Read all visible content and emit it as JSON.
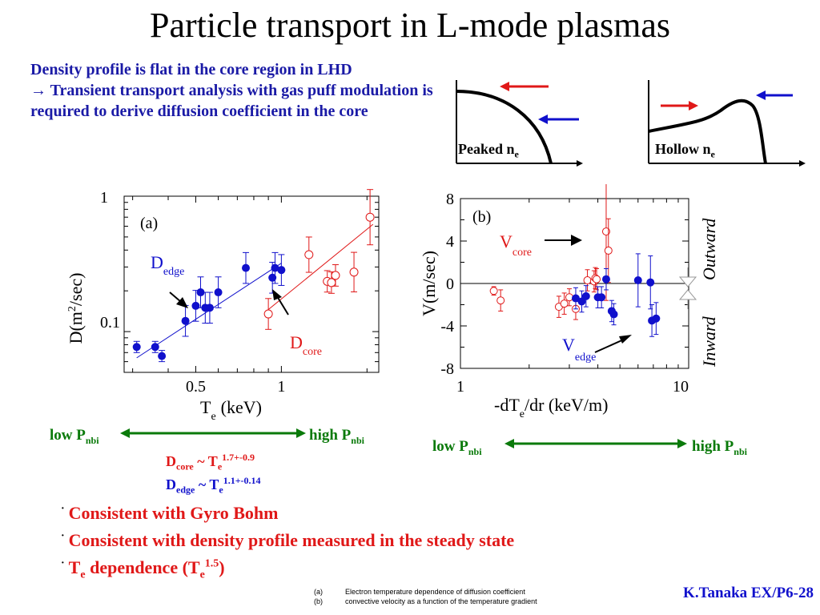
{
  "title": "Particle transport in L-mode plasmas",
  "intro": {
    "line1": "Density profile is flat in the core region in LHD",
    "arrow": "→",
    "line2": "Transient transport analysis with gas puff modulation is required to derive diffusion coefficient in the core"
  },
  "profiles": {
    "peaked": {
      "label": "Peaked n",
      "sub": "e"
    },
    "hollow": {
      "label": "Hollow n",
      "sub": "e"
    }
  },
  "colors": {
    "blue": "#1010cc",
    "red": "#e01818",
    "green": "#0a7a0a",
    "intro": "#1a1aa6"
  },
  "chart_data": [
    {
      "type": "scatter",
      "panel_label": "(a)",
      "xlabel": "T",
      "xlabel_sub": "e",
      "xlabel_unit": "(keV)",
      "ylabel": "D(m",
      "ylabel_sup": "2",
      "ylabel_unit": "/sec)",
      "x_scale": "log",
      "y_scale": "log",
      "xlim": [
        0.28,
        2.2
      ],
      "ylim": [
        0.05,
        1
      ],
      "x_ticks": [
        "0.5",
        "1"
      ],
      "y_ticks": [
        "1",
        "0.1"
      ],
      "series": [
        {
          "name": "D",
          "name_sub": "edge",
          "color": "#1010cc",
          "marker": "filled",
          "x": [
            0.31,
            0.36,
            0.38,
            0.46,
            0.5,
            0.52,
            0.54,
            0.56,
            0.6,
            0.75,
            0.93,
            0.95,
            1.0
          ],
          "y": [
            0.077,
            0.077,
            0.066,
            0.12,
            0.155,
            0.195,
            0.15,
            0.15,
            0.195,
            0.295,
            0.25,
            0.295,
            0.285
          ],
          "err": [
            0.1,
            0.1,
            0.1,
            0.3,
            0.3,
            0.3,
            0.3,
            0.3,
            0.3,
            0.3,
            0.3,
            0.3,
            0.3
          ]
        },
        {
          "name": "D",
          "name_sub": "core",
          "color": "#e01818",
          "marker": "open",
          "x": [
            0.9,
            1.25,
            1.45,
            1.5,
            1.55,
            1.8,
            2.05
          ],
          "y": [
            0.135,
            0.37,
            0.235,
            0.23,
            0.26,
            0.275,
            0.7
          ],
          "err": [
            0.3,
            0.35,
            0.2,
            0.2,
            0.2,
            0.4,
            0.6
          ]
        }
      ],
      "fit_lines": [
        {
          "color": "#1010cc",
          "x": [
            0.31,
            1.0
          ],
          "y": [
            0.064,
            0.32
          ]
        },
        {
          "color": "#e01818",
          "x": [
            0.88,
            2.1
          ],
          "y": [
            0.14,
            0.62
          ]
        }
      ]
    },
    {
      "type": "scatter",
      "panel_label": "(b)",
      "xlabel": "-dT",
      "xlabel_sub": "e",
      "xlabel_unit": "/dr (keV/m)",
      "ylabel": "V(m/sec)",
      "x_scale": "log",
      "y_scale": "linear",
      "xlim": [
        1,
        10
      ],
      "ylim": [
        -8,
        8
      ],
      "x_ticks": [
        "1",
        "10"
      ],
      "y_ticks": [
        "8",
        "4",
        "0",
        "-4",
        "-8"
      ],
      "series": [
        {
          "name": "V",
          "name_sub": "edge",
          "color": "#1010cc",
          "marker": "filled",
          "x": [
            3.2,
            3.4,
            3.55,
            4.0,
            4.15,
            4.35,
            4.6,
            4.7,
            6.0,
            6.8,
            6.9,
            7.2
          ],
          "y": [
            -1.4,
            -1.7,
            -1.2,
            -1.3,
            -1.3,
            0.4,
            -2.6,
            -2.9,
            0.3,
            0.1,
            -3.5,
            -3.3
          ],
          "err": [
            1.0,
            1.0,
            1.0,
            1.0,
            1.0,
            1.0,
            1.0,
            1.0,
            2.5,
            2.5,
            1.5,
            1.5
          ]
        },
        {
          "name": "V",
          "name_sub": "core",
          "color": "#e01818",
          "marker": "open",
          "x": [
            1.4,
            1.5,
            2.7,
            2.85,
            3.0,
            3.2,
            3.6,
            3.85,
            3.9,
            3.95,
            4.35,
            4.45
          ],
          "y": [
            -0.7,
            -1.6,
            -2.2,
            -1.9,
            -1.3,
            -2.4,
            0.3,
            0.2,
            0.5,
            0.4,
            4.9,
            3.1
          ],
          "err": [
            0.4,
            1.0,
            1.0,
            1.0,
            0.8,
            1.0,
            1.0,
            1.0,
            1.0,
            1.0,
            6.5,
            3.0
          ]
        }
      ],
      "side_labels": {
        "outward": "Outward",
        "inward": "Inward"
      }
    }
  ],
  "pnbi": {
    "low": "low P",
    "high": "high P",
    "sub": "nbi"
  },
  "scaling": {
    "core_D": "D",
    "core_sub": "core",
    "core_rest": " ~ T",
    "core_e": "e",
    "core_exp": "1.7+-0.9",
    "edge_D": "D",
    "edge_sub": "edge",
    "edge_rest": " ~ T",
    "edge_e": "e",
    "edge_exp": "1.1+-0.14"
  },
  "bullets": {
    "dot": "·",
    "b1": "Consistent with Gyro Bohm",
    "b2": "Consistent with density profile measured in the steady state",
    "b3_pre": "T",
    "b3_sub": "e",
    "b3_mid": " dependence (T",
    "b3_sub2": "e",
    "b3_sup": "1.5",
    "b3_end": ")"
  },
  "captions": {
    "a_label": "(a)",
    "a_text": "Electron temperature dependence of diffusion coefficient",
    "b_label": "(b)",
    "b_text": "convective velocity as a function of the temperature gradient"
  },
  "footer": "K.Tanaka EX/P6-28"
}
